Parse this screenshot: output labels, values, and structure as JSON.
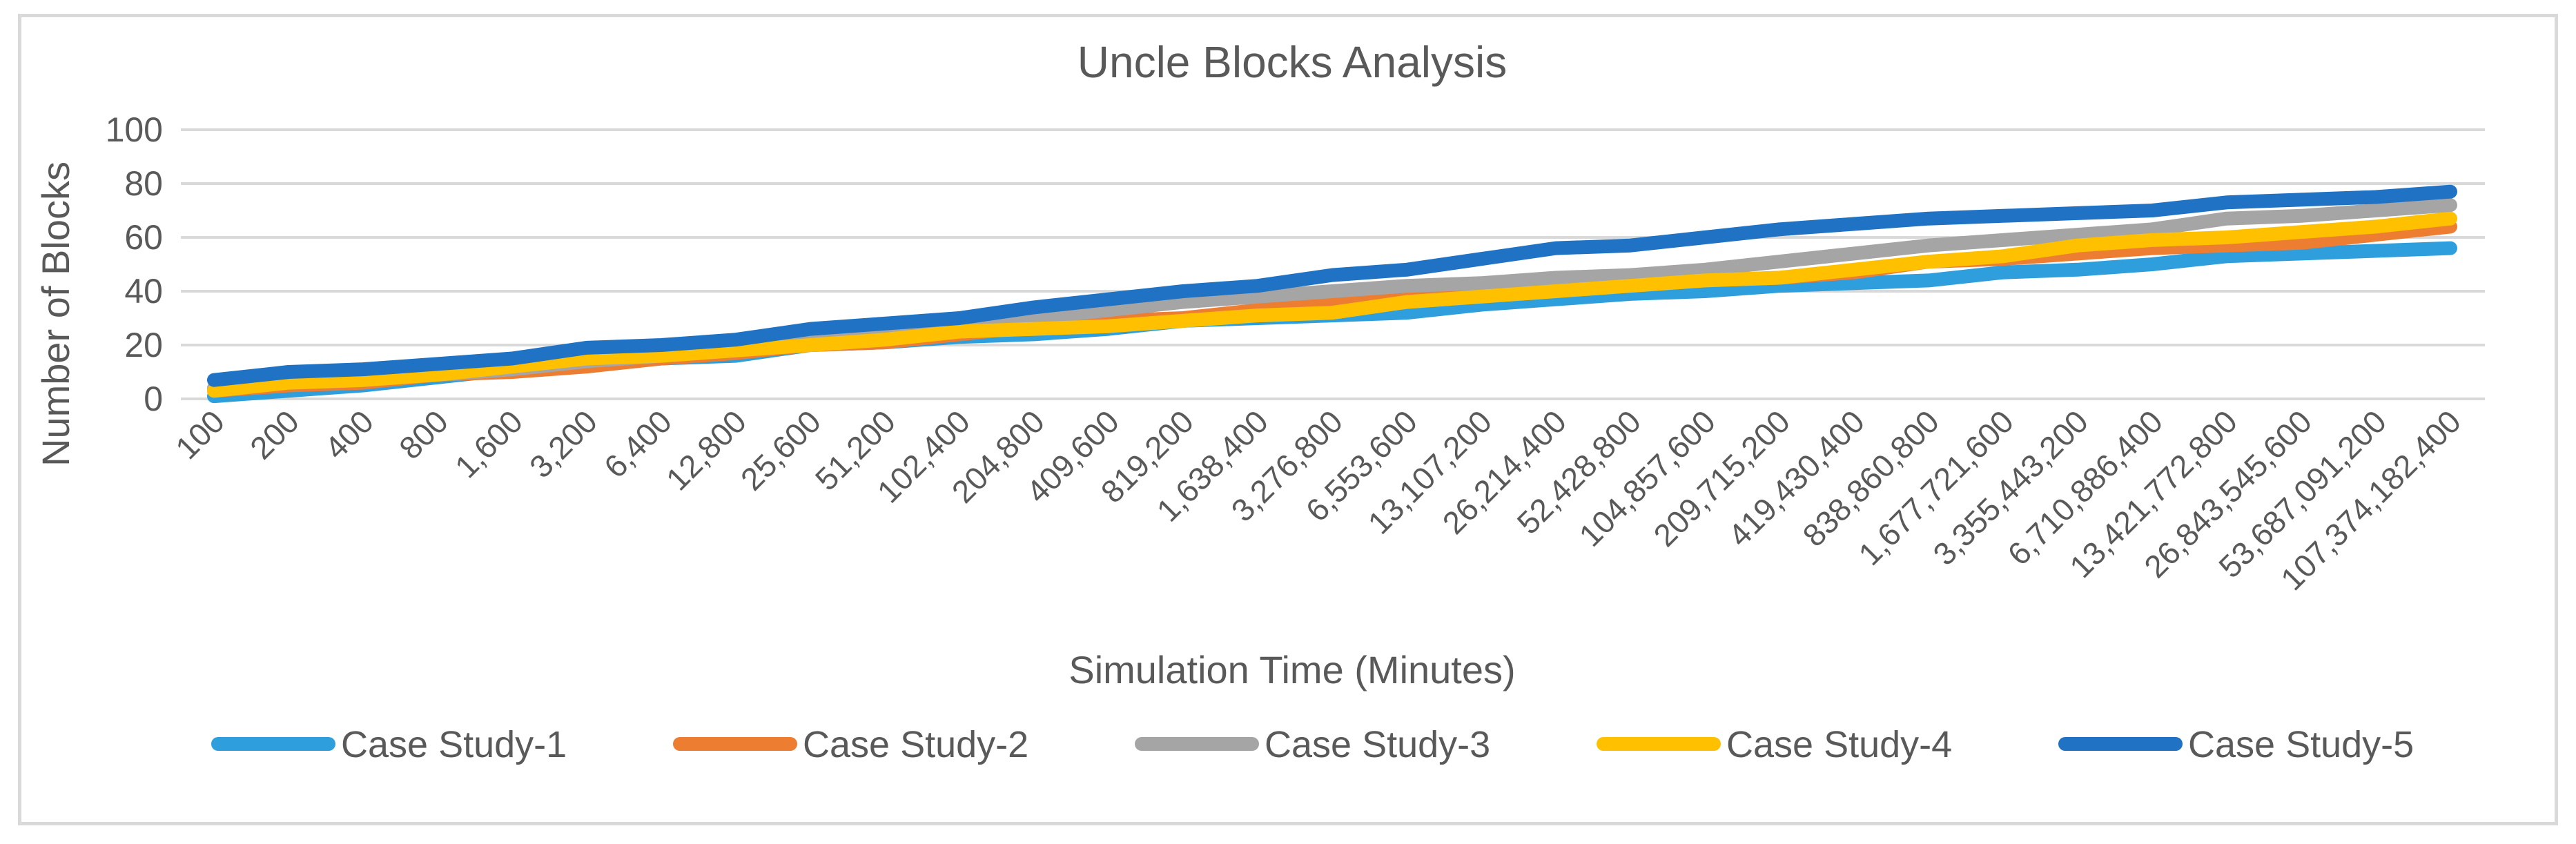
{
  "chart_data": {
    "type": "line",
    "title": "Uncle Blocks Analysis",
    "xlabel": "Simulation Time (Minutes)",
    "ylabel": "Number of Blocks",
    "ylim": [
      0,
      100
    ],
    "yticks": [
      0,
      20,
      40,
      60,
      80,
      100
    ],
    "grid": true,
    "legend_position": "bottom",
    "categories": [
      "100",
      "200",
      "400",
      "800",
      "1,600",
      "3,200",
      "6,400",
      "12,800",
      "25,600",
      "51,200",
      "102,400",
      "204,800",
      "409,600",
      "819,200",
      "1,638,400",
      "3,276,800",
      "6,553,600",
      "13,107,200",
      "26,214,400",
      "52,428,800",
      "104,857,600",
      "209,715,200",
      "419,430,400",
      "838,860,800",
      "1,677,721,600",
      "3,355,443,200",
      "6,710,886,400",
      "13,421,772,800",
      "26,843,545,600",
      "53,687,091,200",
      "107,374,182,400"
    ],
    "series": [
      {
        "name": "Case Study-1",
        "color": "#2e9fdc",
        "values": [
          1,
          3,
          5,
          8,
          11,
          13,
          15,
          16,
          20,
          21,
          23,
          24,
          26,
          29,
          30,
          31,
          32,
          35,
          37,
          39,
          40,
          42,
          43,
          44,
          47,
          48,
          50,
          53,
          54,
          55,
          56
        ]
      },
      {
        "name": "Case Study-2",
        "color": "#ed7d31",
        "values": [
          3,
          5,
          6,
          9,
          10,
          12,
          15,
          17,
          20,
          21,
          24,
          27,
          29,
          30,
          33,
          35,
          39,
          41,
          41,
          43,
          44,
          45,
          47,
          51,
          52,
          54,
          56,
          57,
          58,
          61,
          64
        ]
      },
      {
        "name": "Case Study-3",
        "color": "#a5a5a5",
        "values": [
          4,
          6,
          7,
          9,
          11,
          14,
          16,
          18,
          21,
          24,
          27,
          30,
          33,
          36,
          38,
          40,
          42,
          43,
          45,
          46,
          48,
          51,
          54,
          57,
          59,
          61,
          63,
          67,
          68,
          70,
          72
        ]
      },
      {
        "name": "Case Study-4",
        "color": "#ffc000",
        "values": [
          3,
          6,
          7,
          9,
          12,
          15,
          16,
          18,
          20,
          22,
          25,
          26,
          27,
          29,
          31,
          32,
          36,
          38,
          40,
          42,
          44,
          45,
          48,
          51,
          53,
          57,
          59,
          60,
          62,
          64,
          67
        ]
      },
      {
        "name": "Case Study-5",
        "color": "#1f72c4",
        "values": [
          7,
          10,
          11,
          13,
          15,
          19,
          20,
          22,
          26,
          28,
          30,
          34,
          37,
          40,
          42,
          46,
          48,
          52,
          56,
          57,
          60,
          63,
          65,
          67,
          68,
          69,
          70,
          73,
          74,
          75,
          77
        ]
      }
    ]
  }
}
